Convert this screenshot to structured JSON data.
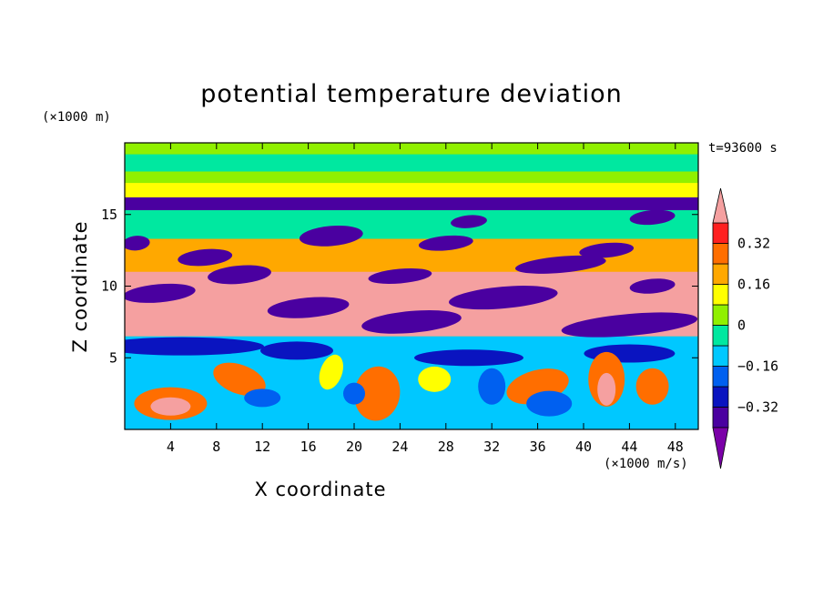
{
  "chart_data": {
    "type": "heatmap",
    "title": "potential temperature deviation",
    "xlabel": "X coordinate",
    "ylabel": "Z coordinate",
    "x_unit": "(×1000 m/s)",
    "y_unit": "(×1000 m)",
    "time_label": "t=93600 s",
    "xlim": [
      0,
      50
    ],
    "ylim": [
      0,
      20
    ],
    "x_ticks": [
      4,
      8,
      12,
      16,
      20,
      24,
      28,
      32,
      36,
      40,
      44,
      48
    ],
    "y_ticks": [
      5,
      10,
      15
    ],
    "colorbar": {
      "levels": [
        -0.4,
        -0.32,
        -0.24,
        -0.16,
        -0.08,
        0,
        0.08,
        0.16,
        0.24,
        0.32,
        0.4
      ],
      "tick_labels": [
        "0.32",
        "0.16",
        "0",
        "−0.16",
        "−0.32"
      ],
      "tick_values": [
        0.32,
        0.16,
        0,
        -0.16,
        -0.32
      ],
      "colors": [
        "#7b00a8",
        "#4a00a0",
        "#0a14c0",
        "#0060f0",
        "#00c8ff",
        "#00e8a0",
        "#90f000",
        "#ffff00",
        "#ffa800",
        "#ff6e00",
        "#ff2020",
        "#f5a0a0"
      ],
      "extend": "both"
    },
    "grid": false,
    "legend": "colorbar right"
  }
}
